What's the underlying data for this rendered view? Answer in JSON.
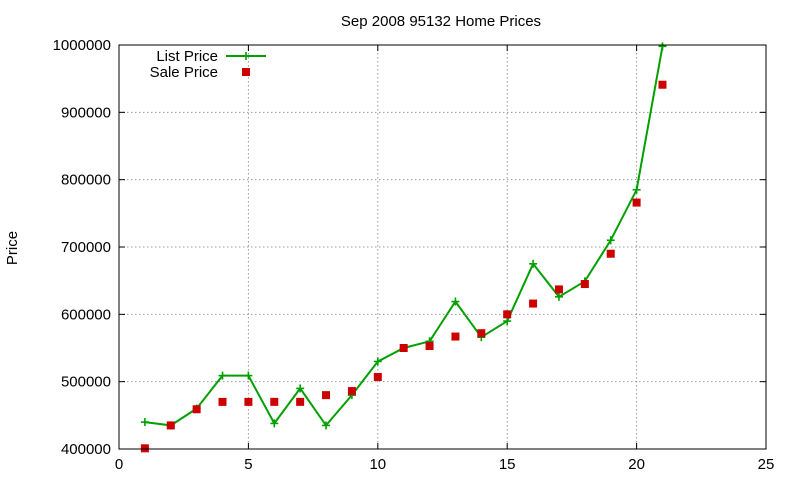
{
  "chart_data": {
    "type": "line",
    "title": "Sep 2008 95132 Home Prices",
    "xlabel": "",
    "ylabel": "Price",
    "xlim": [
      0,
      25
    ],
    "ylim": [
      400000,
      1000000
    ],
    "xticks": [
      0,
      5,
      10,
      15,
      20,
      25
    ],
    "yticks": [
      400000,
      500000,
      600000,
      700000,
      800000,
      900000,
      1000000
    ],
    "grid": true,
    "legend_position": "top-left",
    "series": [
      {
        "name": "List Price",
        "style": "line-plus",
        "color": "#00a000",
        "x": [
          1,
          2,
          3,
          4,
          5,
          6,
          7,
          8,
          9,
          10,
          11,
          12,
          13,
          14,
          15,
          16,
          17,
          18,
          19,
          20,
          21
        ],
        "y": [
          440000,
          435000,
          460000,
          509000,
          509000,
          438000,
          490000,
          435000,
          480000,
          530000,
          550000,
          560000,
          619000,
          566000,
          590000,
          675000,
          626000,
          649000,
          710000,
          785000,
          998000
        ]
      },
      {
        "name": "Sale Price",
        "style": "square",
        "color": "#cc0000",
        "x": [
          1,
          2,
          3,
          4,
          5,
          6,
          7,
          8,
          9,
          10,
          11,
          12,
          13,
          14,
          15,
          16,
          17,
          18,
          19,
          20,
          21
        ],
        "y": [
          401000,
          435000,
          459000,
          470000,
          470000,
          470000,
          470000,
          480000,
          486000,
          507000,
          550000,
          553000,
          567000,
          572000,
          600000,
          616000,
          637000,
          645000,
          690000,
          766000,
          941000
        ]
      }
    ]
  }
}
